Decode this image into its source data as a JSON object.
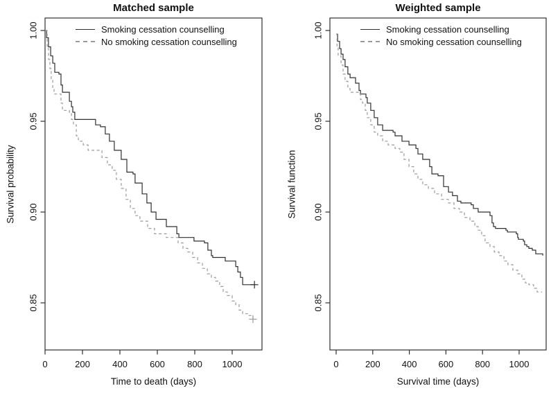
{
  "figure": {
    "colors": {
      "solid_line": "#2f2f2f",
      "dashed_line": "#9a9a9a",
      "frame": "#2f2f2f",
      "text": "#111111",
      "background": "#ffffff"
    }
  },
  "chart_data": [
    {
      "type": "line",
      "subtype": "kaplan-meier-step",
      "title": "Matched sample",
      "xlabel": "Time to death (days)",
      "ylabel": "Survival probability",
      "xticks": [
        0,
        200,
        400,
        600,
        800,
        1000
      ],
      "yticks": [
        1.0,
        0.95,
        0.9,
        0.85
      ],
      "xlim": [
        0,
        1160
      ],
      "ylim": [
        0.824,
        1.006
      ],
      "grid": false,
      "legend_position": "top-center-inside",
      "legend": [
        {
          "label": "Smoking cessation counselling",
          "style": "solid"
        },
        {
          "label": "No smoking cessation counselling",
          "style": "dashed"
        }
      ],
      "series": [
        {
          "name": "Smoking cessation counselling",
          "style": "solid",
          "censor_mark_at_end": true,
          "points": [
            [
              0,
              1.0
            ],
            [
              8,
              0.996
            ],
            [
              18,
              0.991
            ],
            [
              30,
              0.986
            ],
            [
              41,
              0.982
            ],
            [
              52,
              0.977
            ],
            [
              74,
              0.976
            ],
            [
              85,
              0.97
            ],
            [
              93,
              0.966
            ],
            [
              119,
              0.966
            ],
            [
              130,
              0.961
            ],
            [
              141,
              0.958
            ],
            [
              148,
              0.955
            ],
            [
              159,
              0.951
            ],
            [
              263,
              0.951
            ],
            [
              270,
              0.948
            ],
            [
              296,
              0.947
            ],
            [
              322,
              0.943
            ],
            [
              344,
              0.939
            ],
            [
              370,
              0.934
            ],
            [
              407,
              0.929
            ],
            [
              437,
              0.922
            ],
            [
              470,
              0.921
            ],
            [
              481,
              0.916
            ],
            [
              519,
              0.91
            ],
            [
              544,
              0.905
            ],
            [
              567,
              0.9
            ],
            [
              593,
              0.896
            ],
            [
              630,
              0.896
            ],
            [
              648,
              0.892
            ],
            [
              685,
              0.892
            ],
            [
              704,
              0.888
            ],
            [
              715,
              0.886
            ],
            [
              780,
              0.886
            ],
            [
              796,
              0.884
            ],
            [
              852,
              0.883
            ],
            [
              870,
              0.879
            ],
            [
              889,
              0.876
            ],
            [
              896,
              0.875
            ],
            [
              952,
              0.875
            ],
            [
              963,
              0.873
            ],
            [
              1007,
              0.873
            ],
            [
              1019,
              0.87
            ],
            [
              1030,
              0.867
            ],
            [
              1044,
              0.864
            ],
            [
              1056,
              0.86
            ],
            [
              1119,
              0.86
            ]
          ]
        },
        {
          "name": "No smoking cessation counselling",
          "style": "dashed",
          "censor_mark_at_end": true,
          "points": [
            [
              0,
              1.0
            ],
            [
              11,
              0.99
            ],
            [
              19,
              0.984
            ],
            [
              26,
              0.979
            ],
            [
              33,
              0.973
            ],
            [
              41,
              0.968
            ],
            [
              48,
              0.965
            ],
            [
              74,
              0.965
            ],
            [
              85,
              0.96
            ],
            [
              93,
              0.956
            ],
            [
              130,
              0.955
            ],
            [
              141,
              0.951
            ],
            [
              152,
              0.948
            ],
            [
              167,
              0.942
            ],
            [
              178,
              0.939
            ],
            [
              204,
              0.937
            ],
            [
              230,
              0.934
            ],
            [
              278,
              0.934
            ],
            [
              304,
              0.93
            ],
            [
              333,
              0.926
            ],
            [
              359,
              0.923
            ],
            [
              381,
              0.918
            ],
            [
              407,
              0.913
            ],
            [
              433,
              0.907
            ],
            [
              456,
              0.902
            ],
            [
              481,
              0.898
            ],
            [
              507,
              0.895
            ],
            [
              548,
              0.891
            ],
            [
              585,
              0.888
            ],
            [
              637,
              0.888
            ],
            [
              648,
              0.886
            ],
            [
              685,
              0.886
            ],
            [
              711,
              0.883
            ],
            [
              737,
              0.88
            ],
            [
              763,
              0.878
            ],
            [
              789,
              0.875
            ],
            [
              815,
              0.872
            ],
            [
              841,
              0.869
            ],
            [
              867,
              0.866
            ],
            [
              889,
              0.864
            ],
            [
              911,
              0.862
            ],
            [
              933,
              0.859
            ],
            [
              952,
              0.856
            ],
            [
              974,
              0.854
            ],
            [
              1000,
              0.851
            ],
            [
              1019,
              0.849
            ],
            [
              1037,
              0.846
            ],
            [
              1056,
              0.844
            ],
            [
              1085,
              0.843
            ],
            [
              1111,
              0.841
            ]
          ]
        }
      ]
    },
    {
      "type": "line",
      "subtype": "kaplan-meier-step",
      "title": "Weighted sample",
      "xlabel": "Survival time (days)",
      "ylabel": "Survival function",
      "xticks": [
        0,
        200,
        400,
        600,
        800,
        1000
      ],
      "yticks": [
        1.0,
        0.95,
        0.9,
        0.85
      ],
      "xlim": [
        -34,
        1148
      ],
      "ylim": [
        0.824,
        1.006
      ],
      "grid": false,
      "legend_position": "top-center-inside",
      "legend": [
        {
          "label": "Smoking cessation counselling",
          "style": "solid"
        },
        {
          "label": "No smoking cessation counselling",
          "style": "dashed"
        }
      ],
      "series": [
        {
          "name": "Smoking cessation counselling",
          "style": "solid",
          "censor_mark_at_end": false,
          "points": [
            [
              0,
              0.998
            ],
            [
              8,
              0.994
            ],
            [
              19,
              0.99
            ],
            [
              27,
              0.987
            ],
            [
              38,
              0.984
            ],
            [
              49,
              0.98
            ],
            [
              64,
              0.976
            ],
            [
              76,
              0.974
            ],
            [
              106,
              0.971
            ],
            [
              125,
              0.967
            ],
            [
              133,
              0.965
            ],
            [
              163,
              0.963
            ],
            [
              170,
              0.96
            ],
            [
              189,
              0.956
            ],
            [
              208,
              0.952
            ],
            [
              227,
              0.948
            ],
            [
              254,
              0.945
            ],
            [
              311,
              0.944
            ],
            [
              322,
              0.942
            ],
            [
              360,
              0.939
            ],
            [
              398,
              0.937
            ],
            [
              436,
              0.935
            ],
            [
              447,
              0.932
            ],
            [
              473,
              0.929
            ],
            [
              511,
              0.925
            ],
            [
              523,
              0.921
            ],
            [
              557,
              0.92
            ],
            [
              587,
              0.914
            ],
            [
              614,
              0.911
            ],
            [
              636,
              0.909
            ],
            [
              663,
              0.906
            ],
            [
              682,
              0.905
            ],
            [
              738,
              0.904
            ],
            [
              750,
              0.902
            ],
            [
              776,
              0.9
            ],
            [
              826,
              0.9
            ],
            [
              841,
              0.898
            ],
            [
              852,
              0.894
            ],
            [
              860,
              0.892
            ],
            [
              871,
              0.891
            ],
            [
              928,
              0.89
            ],
            [
              936,
              0.889
            ],
            [
              985,
              0.888
            ],
            [
              992,
              0.886
            ],
            [
              996,
              0.885
            ],
            [
              1023,
              0.884
            ],
            [
              1030,
              0.882
            ],
            [
              1042,
              0.881
            ],
            [
              1053,
              0.88
            ],
            [
              1072,
              0.879
            ],
            [
              1091,
              0.877
            ],
            [
              1129,
              0.876
            ]
          ]
        },
        {
          "name": "No smoking cessation counselling",
          "style": "dashed",
          "censor_mark_at_end": false,
          "points": [
            [
              0,
              0.998
            ],
            [
              5,
              0.991
            ],
            [
              11,
              0.986
            ],
            [
              27,
              0.981
            ],
            [
              38,
              0.976
            ],
            [
              49,
              0.972
            ],
            [
              64,
              0.968
            ],
            [
              76,
              0.966
            ],
            [
              125,
              0.965
            ],
            [
              133,
              0.962
            ],
            [
              144,
              0.96
            ],
            [
              159,
              0.956
            ],
            [
              170,
              0.952
            ],
            [
              189,
              0.948
            ],
            [
              208,
              0.944
            ],
            [
              227,
              0.942
            ],
            [
              254,
              0.939
            ],
            [
              284,
              0.937
            ],
            [
              322,
              0.935
            ],
            [
              348,
              0.933
            ],
            [
              371,
              0.929
            ],
            [
              398,
              0.925
            ],
            [
              424,
              0.921
            ],
            [
              447,
              0.918
            ],
            [
              473,
              0.915
            ],
            [
              504,
              0.913
            ],
            [
              538,
              0.91
            ],
            [
              576,
              0.907
            ],
            [
              614,
              0.905
            ],
            [
              644,
              0.902
            ],
            [
              674,
              0.9
            ],
            [
              701,
              0.897
            ],
            [
              731,
              0.895
            ],
            [
              758,
              0.892
            ],
            [
              776,
              0.89
            ],
            [
              795,
              0.887
            ],
            [
              814,
              0.883
            ],
            [
              841,
              0.881
            ],
            [
              864,
              0.878
            ],
            [
              890,
              0.876
            ],
            [
              917,
              0.873
            ],
            [
              939,
              0.871
            ],
            [
              966,
              0.868
            ],
            [
              992,
              0.866
            ],
            [
              1015,
              0.863
            ],
            [
              1034,
              0.861
            ],
            [
              1053,
              0.86
            ],
            [
              1079,
              0.858
            ],
            [
              1098,
              0.856
            ],
            [
              1125,
              0.856
            ]
          ]
        }
      ]
    }
  ]
}
